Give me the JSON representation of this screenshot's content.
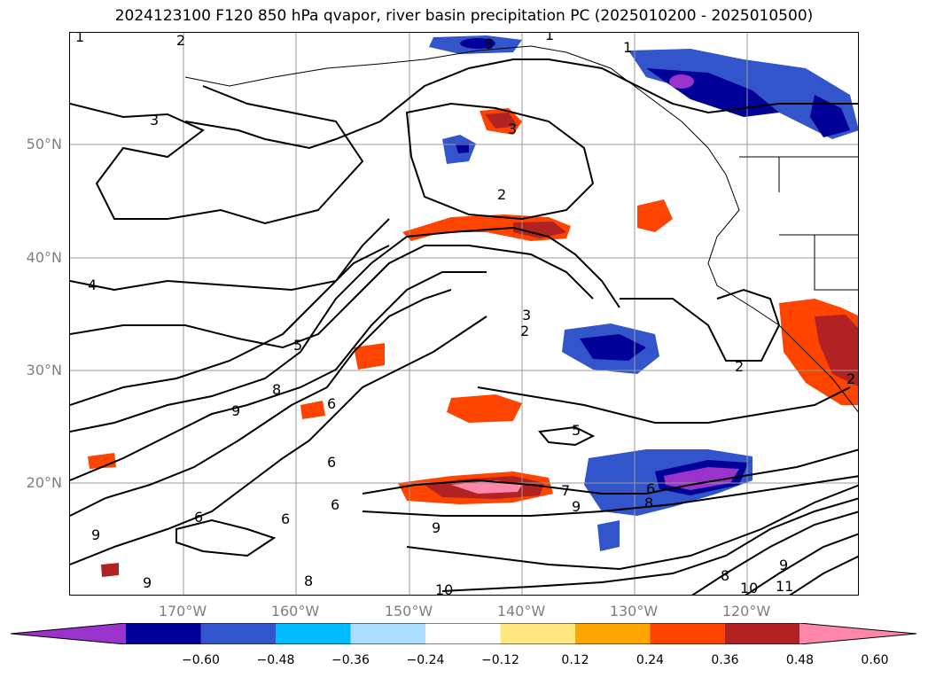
{
  "title": "2024123100 F120 850 hPa qvapor, river basin precipitation PC (2025010200 - 2025010500)",
  "y_axis_labels": [
    "50°N",
    "40°N",
    "30°N",
    "20°N"
  ],
  "x_axis_labels": [
    "170°W",
    "160°W",
    "150°W",
    "140°W",
    "130°W",
    "120°W"
  ],
  "colorbar": {
    "colors": [
      "#9933cc",
      "#000099",
      "#3355cc",
      "#00bbff",
      "#aaddff",
      "#ffffff",
      "#ffe680",
      "#ffa500",
      "#ff4400",
      "#b22222",
      "#ff88aa"
    ],
    "tick_labels": [
      "−0.60",
      "−0.48",
      "−0.36",
      "−0.24",
      "−0.12",
      "0.12",
      "0.24",
      "0.36",
      "0.48",
      "0.60"
    ]
  },
  "contour_labels": [
    "1",
    "2",
    "3",
    "1",
    "3",
    "1",
    "3",
    "2",
    "4",
    "3",
    "2",
    "5",
    "8",
    "9",
    "6",
    "5",
    "2",
    "7",
    "6",
    "9",
    "8",
    "9",
    "10",
    "8",
    "9",
    "10",
    "11",
    "6",
    "8",
    "6",
    "9",
    "9",
    "6",
    "6",
    "2"
  ]
}
